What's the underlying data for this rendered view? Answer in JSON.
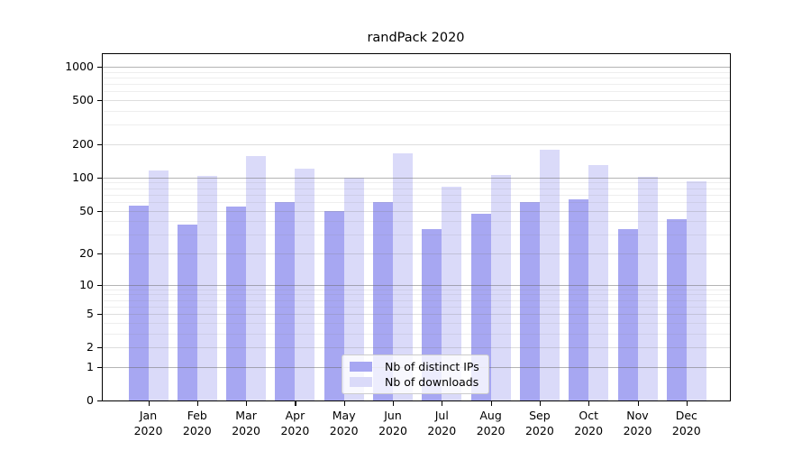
{
  "chart_data": {
    "type": "bar",
    "title": "randPack 2020",
    "categories": [
      "Jan 2020",
      "Feb 2020",
      "Mar 2020",
      "Apr 2020",
      "May 2020",
      "Jun 2020",
      "Jul 2020",
      "Aug 2020",
      "Sep 2020",
      "Oct 2020",
      "Nov 2020",
      "Dec 2020"
    ],
    "series": [
      {
        "name": "Nb of distinct IPs",
        "color": "#a7a7f2",
        "values": [
          56,
          37,
          54,
          60,
          50,
          60,
          34,
          47,
          60,
          63,
          34,
          42
        ]
      },
      {
        "name": "Nb of downloads",
        "color": "#dadaf9",
        "values": [
          115,
          103,
          157,
          121,
          100,
          167,
          83,
          105,
          180,
          130,
          102,
          92
        ]
      }
    ],
    "xlabel": "",
    "ylabel": "",
    "yscale": "log10(1+v)",
    "ylim": [
      0,
      1300
    ],
    "yticks": [
      0,
      1,
      2,
      5,
      10,
      20,
      50,
      100,
      200,
      500,
      1000
    ],
    "grid": {
      "on": true,
      "major": [
        1,
        10,
        100,
        1000
      ],
      "mid": [
        2,
        5,
        20,
        50,
        200,
        500
      ],
      "minor": [
        3,
        4,
        6,
        7,
        8,
        9,
        30,
        40,
        60,
        70,
        80,
        90,
        300,
        400,
        600,
        700,
        800,
        900
      ]
    },
    "legend_position": "lower-center"
  }
}
